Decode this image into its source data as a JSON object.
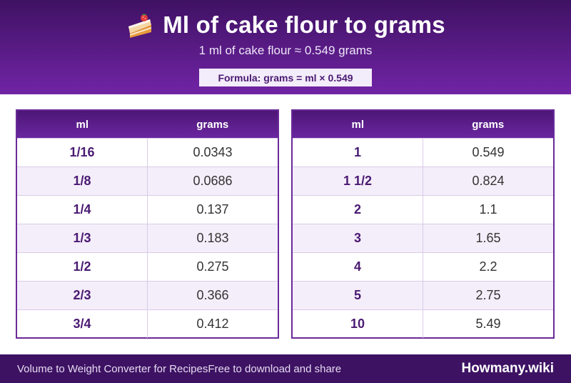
{
  "header": {
    "title": "Ml of cake flour to grams",
    "icon": "shortcake-icon",
    "subtitle": "1 ml of cake flour ≈ 0.549 grams",
    "formula": "Formula: grams = ml × 0.549"
  },
  "tables": [
    {
      "headers": {
        "ml": "ml",
        "grams": "grams"
      },
      "rows": [
        {
          "ml": "1/16",
          "grams": "0.0343"
        },
        {
          "ml": "1/8",
          "grams": "0.0686"
        },
        {
          "ml": "1/4",
          "grams": "0.137"
        },
        {
          "ml": "1/3",
          "grams": "0.183"
        },
        {
          "ml": "1/2",
          "grams": "0.275"
        },
        {
          "ml": "2/3",
          "grams": "0.366"
        },
        {
          "ml": "3/4",
          "grams": "0.412"
        }
      ]
    },
    {
      "headers": {
        "ml": "ml",
        "grams": "grams"
      },
      "rows": [
        {
          "ml": "1",
          "grams": "0.549"
        },
        {
          "ml": "1 1/2",
          "grams": "0.824"
        },
        {
          "ml": "2",
          "grams": "1.1"
        },
        {
          "ml": "3",
          "grams": "1.65"
        },
        {
          "ml": "4",
          "grams": "2.2"
        },
        {
          "ml": "5",
          "grams": "2.75"
        },
        {
          "ml": "10",
          "grams": "5.49"
        }
      ]
    }
  ],
  "footer": {
    "left_text": "Volume to Weight Converter for RecipesFree to download and share",
    "brand": "Howmany.wiki"
  },
  "colors": {
    "header_dark": "#3f1163",
    "header_light": "#7124a6",
    "accent": "#4a1a72",
    "row_alt": "#f4eefa"
  }
}
